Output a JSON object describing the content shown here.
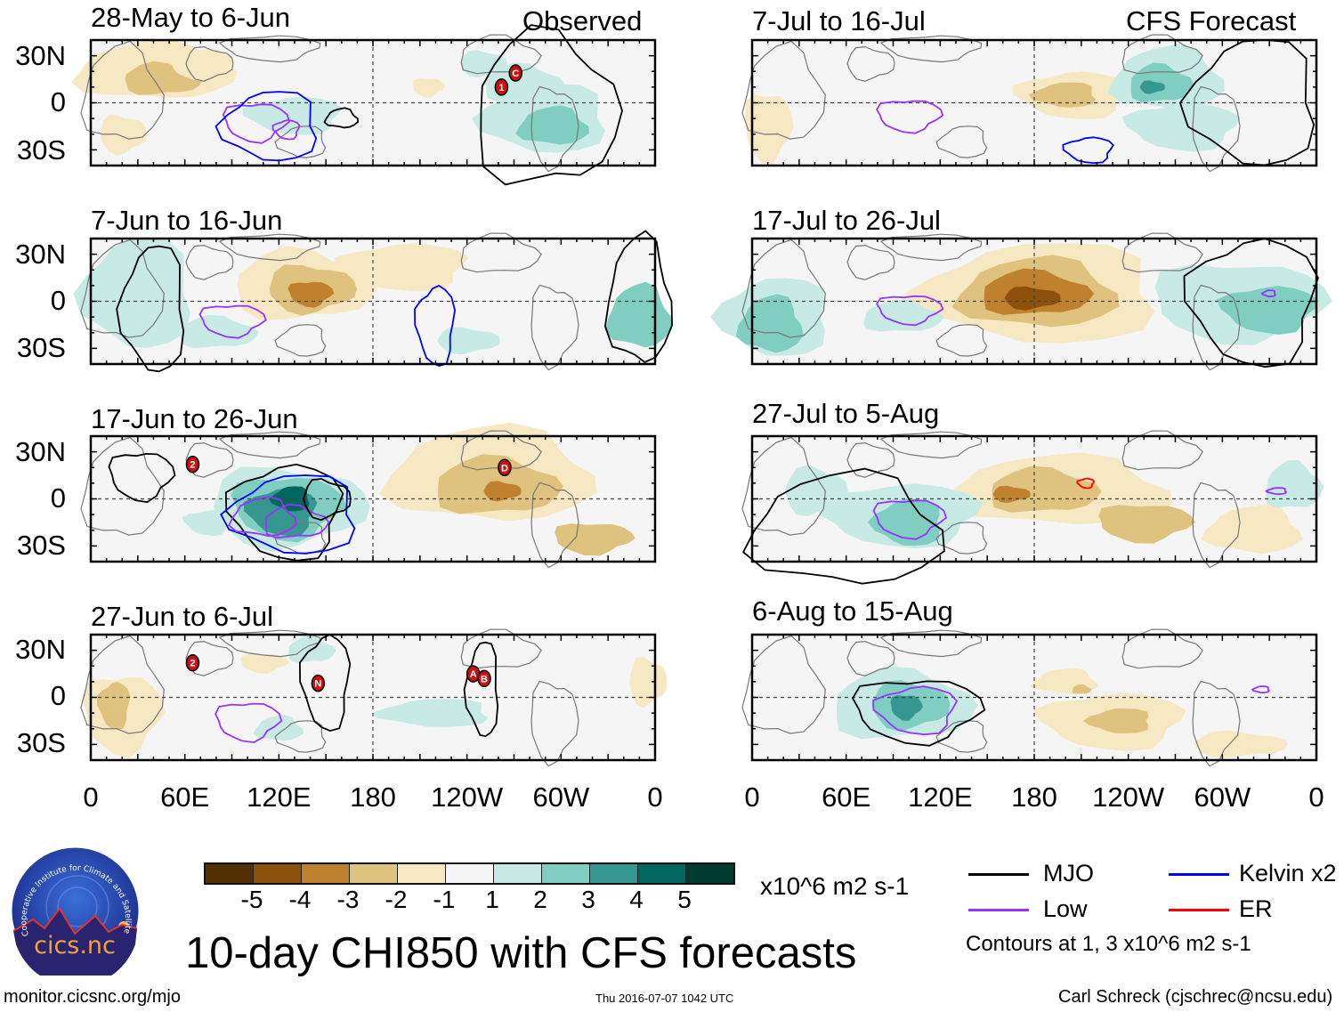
{
  "header": {
    "observed_label": "Observed",
    "forecast_label": "CFS Forecast"
  },
  "lat_labels": [
    "30N",
    "0",
    "30S"
  ],
  "lon_labels": [
    "0",
    "60E",
    "120E",
    "180",
    "120W",
    "60W",
    "0"
  ],
  "panels": [
    {
      "title": "28-May to 6-Jun",
      "column": "observed",
      "storms": [
        {
          "label": "1",
          "lon": 262,
          "lat": 10
        },
        {
          "label": "C",
          "lon": 271,
          "lat": 19
        }
      ]
    },
    {
      "title": "7-Jun to 16-Jun",
      "column": "observed",
      "storms": []
    },
    {
      "title": "17-Jun to 26-Jun",
      "column": "observed",
      "storms": [
        {
          "label": "2",
          "lon": 65,
          "lat": 22
        },
        {
          "label": "D",
          "lon": 264,
          "lat": 20
        }
      ]
    },
    {
      "title": "27-Jun to 6-Jul",
      "column": "observed",
      "storms": [
        {
          "label": "2",
          "lon": 65,
          "lat": 22
        },
        {
          "label": "N",
          "lon": 145,
          "lat": 9
        },
        {
          "label": "A",
          "lon": 244,
          "lat": 15
        },
        {
          "label": "B",
          "lon": 251,
          "lat": 12
        }
      ]
    },
    {
      "title": "7-Jul to 16-Jul",
      "column": "forecast",
      "storms": []
    },
    {
      "title": "17-Jul to 26-Jul",
      "column": "forecast",
      "storms": []
    },
    {
      "title": "27-Jul to 5-Aug",
      "column": "forecast",
      "storms": []
    },
    {
      "title": "6-Aug to 15-Aug",
      "column": "forecast",
      "storms": []
    }
  ],
  "colorbar": {
    "colors": [
      "#543005",
      "#8c510a",
      "#bf812d",
      "#dfc27d",
      "#f6e8c3",
      "#f5f5f5",
      "#c7eae5",
      "#80cdc1",
      "#35978f",
      "#01665e",
      "#003c30"
    ],
    "ticks": [
      "-5",
      "-4",
      "-3",
      "-2",
      "-1",
      "1",
      "2",
      "3",
      "4",
      "5"
    ],
    "units": "x10^6 m2 s-1"
  },
  "legend": {
    "items": [
      {
        "label": "MJO",
        "color": "#000000"
      },
      {
        "label": "Kelvin x2",
        "color": "#0000ff"
      },
      {
        "label": "Low",
        "color": "#9933ff"
      },
      {
        "label": "ER",
        "color": "#ff0000"
      }
    ],
    "note": "Contours at 1, 3 x10^6 m2 s-1"
  },
  "title": "10-day CHI850 with CFS forecasts",
  "footer": {
    "url": "monitor.cicsnc.org/mjo",
    "timestamp": "Thu 2016-07-07 1042 UTC",
    "author": "Carl Schreck (cjschrec@ncsu.edu)"
  },
  "logo": {
    "name": "cics.nc",
    "arc_text": "Cooperative Institute for Climate and Satellites"
  }
}
